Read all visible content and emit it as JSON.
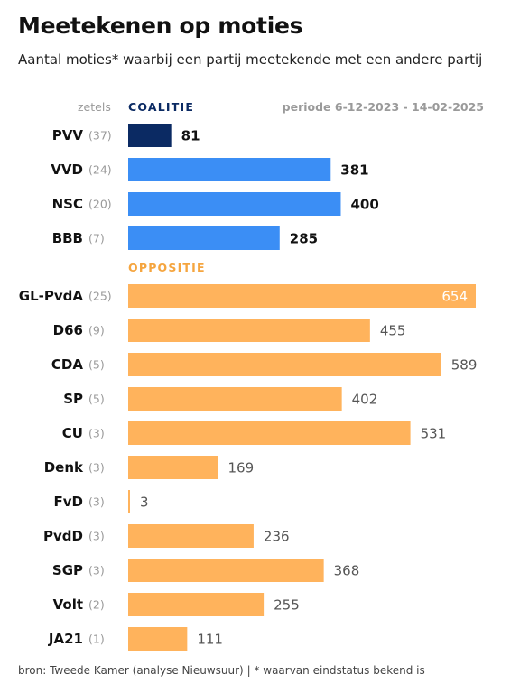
{
  "title": "Meetekenen op moties",
  "subtitle": "Aantal moties* waarbij een partij meetekende met een andere partij",
  "header": {
    "seats_label": "zetels",
    "period_label": "periode 6-12-2023 - 14-02-2025"
  },
  "footer": {
    "source": "bron: Tweede Kamer (analyse Nieuwsuur)",
    "separator": "|",
    "note": "* waarvan eindstatus bekend is"
  },
  "colors": {
    "pvv": "#0b2a63",
    "coalition": "#3b8ef5",
    "opposition": "#ffb35c",
    "coalition_label": "#0b2a63",
    "opposition_label": "#f5a53f"
  },
  "chart_data": {
    "type": "bar",
    "orientation": "horizontal",
    "title": "Meetekenen op moties",
    "subtitle": "Aantal moties* waarbij een partij meetekende met een andere partij",
    "groups": [
      {
        "name": "COALITIE",
        "bars": [
          {
            "party": "PVV",
            "seats": "(37)",
            "value": 81,
            "color": "#0b2a63"
          },
          {
            "party": "VVD",
            "seats": "(24)",
            "value": 381,
            "color": "#3b8ef5"
          },
          {
            "party": "NSC",
            "seats": "(20)",
            "value": 400,
            "color": "#3b8ef5"
          },
          {
            "party": "BBB",
            "seats": "(7)",
            "value": 285,
            "color": "#3b8ef5"
          }
        ]
      },
      {
        "name": "OPPOSITIE",
        "bars": [
          {
            "party": "GL-PvdA",
            "seats": "(25)",
            "value": 654,
            "color": "#ffb35c",
            "label_inside": true
          },
          {
            "party": "D66",
            "seats": "(9)",
            "value": 455,
            "color": "#ffb35c"
          },
          {
            "party": "CDA",
            "seats": "(5)",
            "value": 589,
            "color": "#ffb35c"
          },
          {
            "party": "SP",
            "seats": "(5)",
            "value": 402,
            "color": "#ffb35c"
          },
          {
            "party": "CU",
            "seats": "(3)",
            "value": 531,
            "color": "#ffb35c"
          },
          {
            "party": "Denk",
            "seats": "(3)",
            "value": 169,
            "color": "#ffb35c"
          },
          {
            "party": "FvD",
            "seats": "(3)",
            "value": 3,
            "color": "#ffb35c"
          },
          {
            "party": "PvdD",
            "seats": "(3)",
            "value": 236,
            "color": "#ffb35c"
          },
          {
            "party": "SGP",
            "seats": "(3)",
            "value": 368,
            "color": "#ffb35c"
          },
          {
            "party": "Volt",
            "seats": "(2)",
            "value": 255,
            "color": "#ffb35c"
          },
          {
            "party": "JA21",
            "seats": "(1)",
            "value": 111,
            "color": "#ffb35c"
          }
        ]
      }
    ],
    "xlim": [
      0,
      654
    ],
    "grid": false,
    "legend": "none"
  }
}
